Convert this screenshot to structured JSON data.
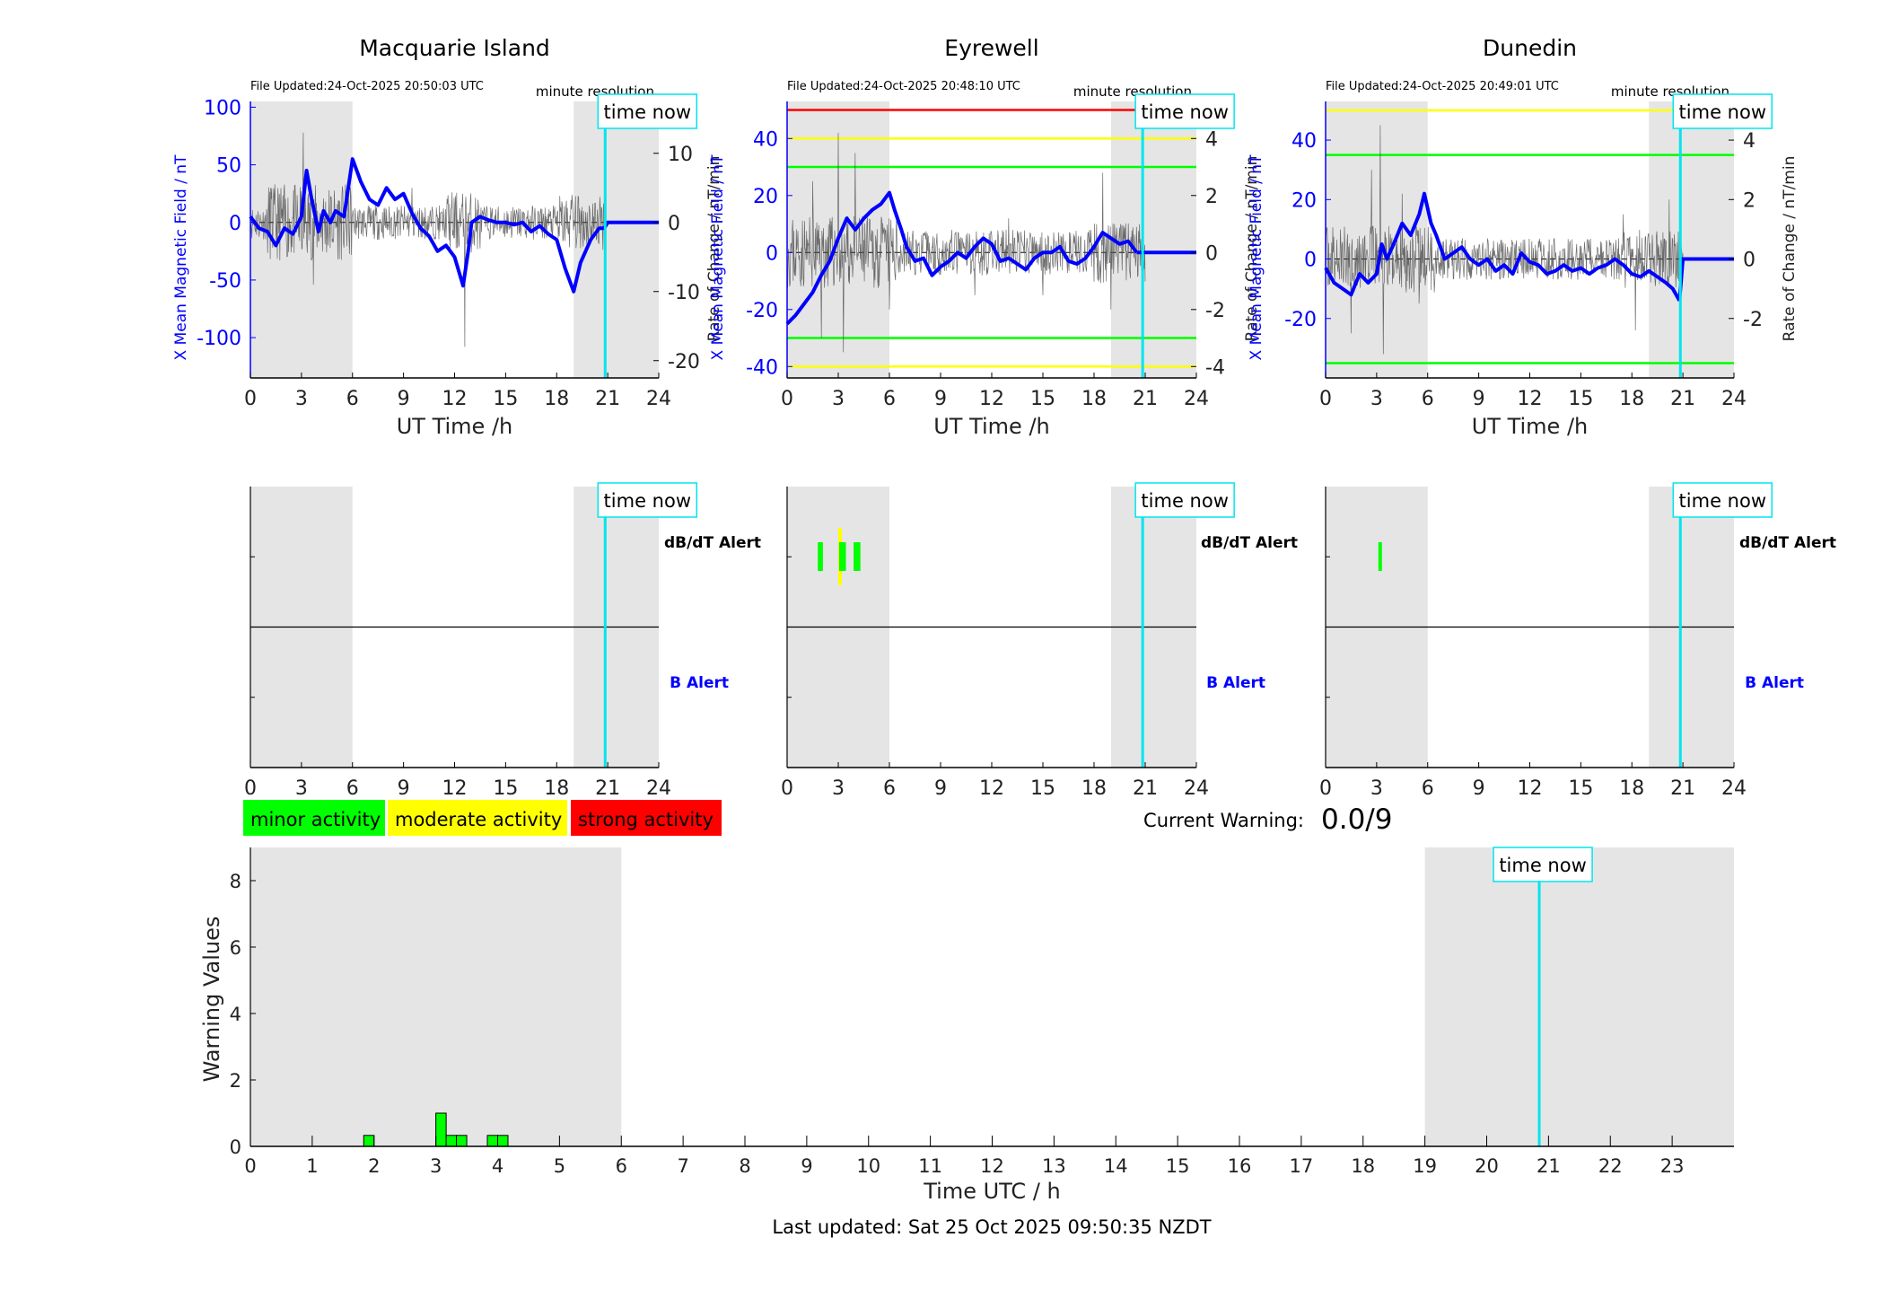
{
  "figure": {
    "footer": "Last updated: Sat 25 Oct 2025 09:50:35 NZDT",
    "time_now_label": "time now",
    "minute_resolution_label": "minute resolution",
    "now_hour": 20.85,
    "night_shading": [
      [
        0,
        6
      ],
      [
        19,
        24
      ]
    ],
    "colors": {
      "minor": "#00ff00",
      "moderate": "#ffff00",
      "strong": "#ff0000",
      "field": "#0000ff",
      "now_line": "#00e5ee",
      "shade": "#e5e5e5"
    }
  },
  "legend": {
    "items": [
      {
        "label": "minor activity",
        "color": "#00ff00"
      },
      {
        "label": "moderate activity",
        "color": "#ffff00"
      },
      {
        "label": "strong activity",
        "color": "#ff0000"
      }
    ]
  },
  "current_warning": {
    "label": "Current Warning:",
    "value": "0.0/9"
  },
  "chart_data": [
    {
      "type": "line",
      "title": "Macquarie Island",
      "file_updated": "File Updated:24-Oct-2025 20:50:03 UTC",
      "xlabel": "UT Time /h",
      "ylabel": "X Mean Magnetic Field / nT",
      "ylabel_right": "Rate of Change / nT/min",
      "xlim": [
        0,
        24
      ],
      "xticks": [
        0,
        3,
        6,
        9,
        12,
        15,
        18,
        21,
        24
      ],
      "ylim": [
        -135,
        105
      ],
      "yticks": [
        -100,
        -50,
        0,
        50,
        100
      ],
      "y2lim": [
        -22.5,
        17.5
      ],
      "y2ticks": [
        -20,
        -10,
        0,
        10
      ],
      "thresholds": [],
      "series": [
        {
          "values": [
            [
              0,
              5
            ],
            [
              0.5,
              -5
            ],
            [
              1,
              -8
            ],
            [
              1.5,
              -20
            ],
            [
              2,
              -5
            ],
            [
              2.5,
              -10
            ],
            [
              3,
              5
            ],
            [
              3.3,
              45
            ],
            [
              3.6,
              20
            ],
            [
              4,
              -8
            ],
            [
              4.3,
              10
            ],
            [
              4.7,
              0
            ],
            [
              5,
              10
            ],
            [
              5.5,
              5
            ],
            [
              6,
              55
            ],
            [
              6.5,
              35
            ],
            [
              7,
              20
            ],
            [
              7.5,
              15
            ],
            [
              8,
              30
            ],
            [
              8.5,
              20
            ],
            [
              9,
              25
            ],
            [
              9.5,
              8
            ],
            [
              10,
              -5
            ],
            [
              10.5,
              -12
            ],
            [
              11,
              -25
            ],
            [
              11.5,
              -20
            ],
            [
              12,
              -30
            ],
            [
              12.5,
              -55
            ],
            [
              12.8,
              -25
            ],
            [
              13,
              0
            ],
            [
              13.5,
              5
            ],
            [
              14,
              2
            ],
            [
              14.5,
              0
            ],
            [
              15,
              0
            ],
            [
              15.5,
              -2
            ],
            [
              16,
              0
            ],
            [
              16.5,
              -8
            ],
            [
              17,
              -3
            ],
            [
              17.5,
              -10
            ],
            [
              18,
              -15
            ],
            [
              18.5,
              -40
            ],
            [
              19,
              -60
            ],
            [
              19.4,
              -35
            ],
            [
              20,
              -15
            ],
            [
              20.5,
              -5
            ],
            [
              20.8,
              -5
            ],
            [
              21,
              0
            ],
            [
              24,
              0
            ]
          ]
        }
      ],
      "rate": {
        "start": 0,
        "end": 20.9,
        "amplitude": 2.5,
        "spikes": [
          [
            3.1,
            13
          ],
          [
            3.7,
            -9
          ],
          [
            12.6,
            -18
          ],
          [
            1.2,
            5
          ],
          [
            9.5,
            5
          ],
          [
            18.9,
            4
          ]
        ],
        "active": [
          [
            1,
            6,
            2.2
          ],
          [
            11.5,
            13.5,
            1.8
          ],
          [
            18,
            20.9,
            1.6
          ]
        ],
        "seed": 11
      },
      "alerts": {
        "dbdt": [],
        "b": []
      }
    },
    {
      "type": "line",
      "title": "Eyrewell",
      "file_updated": "File Updated:24-Oct-2025 20:48:10 UTC",
      "xlabel": "UT Time /h",
      "ylabel": "X Mean Magnetic Field / nT",
      "ylabel_right": "Rate of Change / nT/min",
      "xlim": [
        0,
        24
      ],
      "xticks": [
        0,
        3,
        6,
        9,
        12,
        15,
        18,
        21,
        24
      ],
      "ylim": [
        -44,
        53
      ],
      "yticks": [
        -40,
        -20,
        0,
        20,
        40
      ],
      "y2lim": [
        -4.4,
        5.3
      ],
      "y2ticks": [
        -4,
        -2,
        0,
        2,
        4
      ],
      "thresholds": [
        {
          "value": 50,
          "color": "#ff0000"
        },
        {
          "value": 40,
          "color": "#ffff00"
        },
        {
          "value": 30,
          "color": "#00ff00"
        },
        {
          "value": -30,
          "color": "#00ff00"
        },
        {
          "value": -40,
          "color": "#ffff00"
        }
      ],
      "series": [
        {
          "values": [
            [
              0,
              -25
            ],
            [
              0.5,
              -22
            ],
            [
              1,
              -18
            ],
            [
              1.5,
              -14
            ],
            [
              2,
              -8
            ],
            [
              2.5,
              -3
            ],
            [
              3,
              5
            ],
            [
              3.5,
              12
            ],
            [
              4,
              8
            ],
            [
              4.5,
              12
            ],
            [
              5,
              15
            ],
            [
              5.5,
              17
            ],
            [
              6,
              21
            ],
            [
              6.3,
              15
            ],
            [
              6.7,
              8
            ],
            [
              7,
              2
            ],
            [
              7.5,
              -3
            ],
            [
              8,
              -2
            ],
            [
              8.5,
              -8
            ],
            [
              9,
              -5
            ],
            [
              9.5,
              -3
            ],
            [
              10,
              0
            ],
            [
              10.5,
              -2
            ],
            [
              11,
              2
            ],
            [
              11.5,
              5
            ],
            [
              12,
              3
            ],
            [
              12.5,
              -3
            ],
            [
              13,
              -2
            ],
            [
              13.5,
              -4
            ],
            [
              14,
              -6
            ],
            [
              14.5,
              -2
            ],
            [
              15,
              0
            ],
            [
              15.5,
              0
            ],
            [
              16,
              2
            ],
            [
              16.5,
              -3
            ],
            [
              17,
              -4
            ],
            [
              17.5,
              -2
            ],
            [
              18,
              2
            ],
            [
              18.5,
              7
            ],
            [
              19,
              5
            ],
            [
              19.5,
              3
            ],
            [
              20,
              4
            ],
            [
              20.5,
              0
            ],
            [
              21,
              0
            ],
            [
              24,
              0
            ]
          ]
        }
      ],
      "rate": {
        "start": 0,
        "end": 21,
        "amplitude": 0.8,
        "spikes": [
          [
            3.0,
            4.2
          ],
          [
            3.3,
            -3.5
          ],
          [
            2.0,
            -3
          ],
          [
            4.0,
            3.5
          ],
          [
            6.0,
            -2
          ],
          [
            1.5,
            2.5
          ],
          [
            18.5,
            2.8
          ],
          [
            19.0,
            -2
          ],
          [
            11.0,
            -1.5
          ],
          [
            13.0,
            1.2
          ],
          [
            15.0,
            -1.5
          ]
        ],
        "active": [
          [
            0,
            6.5,
            1.6
          ],
          [
            18,
            21,
            1.4
          ]
        ],
        "seed": 23
      },
      "alerts": {
        "dbdt": [
          {
            "x0": 1.8,
            "x1": 2.1,
            "color": "#00ff00"
          },
          {
            "x0": 3.0,
            "x1": 3.15,
            "color": "#ffff00",
            "tall": true
          },
          {
            "x0": 3.15,
            "x1": 3.45,
            "color": "#00ff00"
          },
          {
            "x0": 3.05,
            "x1": 3.15,
            "color": "#00ff00"
          },
          {
            "x0": 3.9,
            "x1": 4.3,
            "color": "#00ff00"
          }
        ],
        "b": []
      }
    },
    {
      "type": "line",
      "title": "Dunedin",
      "file_updated": "File Updated:24-Oct-2025 20:49:01 UTC",
      "xlabel": "UT Time /h",
      "ylabel": "X Mean Magnetic Field / nT",
      "ylabel_right": "Rate of Change / nT/min",
      "xlim": [
        0,
        24
      ],
      "xticks": [
        0,
        3,
        6,
        9,
        12,
        15,
        18,
        21,
        24
      ],
      "ylim": [
        -40,
        53
      ],
      "yticks": [
        -20,
        0,
        20,
        40
      ],
      "y2lim": [
        -4,
        5.3
      ],
      "y2ticks": [
        -2,
        0,
        2,
        4
      ],
      "thresholds": [
        {
          "value": 50,
          "color": "#ffff00"
        },
        {
          "value": 35,
          "color": "#00ff00"
        },
        {
          "value": -35,
          "color": "#00ff00"
        }
      ],
      "series": [
        {
          "values": [
            [
              0,
              -3
            ],
            [
              0.5,
              -8
            ],
            [
              1,
              -10
            ],
            [
              1.5,
              -12
            ],
            [
              2,
              -5
            ],
            [
              2.5,
              -8
            ],
            [
              3,
              -5
            ],
            [
              3.3,
              5
            ],
            [
              3.6,
              0
            ],
            [
              4,
              5
            ],
            [
              4.5,
              12
            ],
            [
              5,
              8
            ],
            [
              5.5,
              15
            ],
            [
              5.8,
              22
            ],
            [
              6.2,
              12
            ],
            [
              6.5,
              8
            ],
            [
              7,
              0
            ],
            [
              7.5,
              2
            ],
            [
              8,
              4
            ],
            [
              8.5,
              0
            ],
            [
              9,
              -2
            ],
            [
              9.5,
              0
            ],
            [
              10,
              -4
            ],
            [
              10.5,
              -2
            ],
            [
              11,
              -5
            ],
            [
              11.5,
              2
            ],
            [
              12,
              -1
            ],
            [
              12.5,
              -2
            ],
            [
              13,
              -5
            ],
            [
              13.5,
              -4
            ],
            [
              14,
              -2
            ],
            [
              14.5,
              -4
            ],
            [
              15,
              -3
            ],
            [
              15.5,
              -5
            ],
            [
              16,
              -3
            ],
            [
              16.5,
              -2
            ],
            [
              17,
              0
            ],
            [
              17.5,
              -2
            ],
            [
              18,
              -5
            ],
            [
              18.5,
              -6
            ],
            [
              19,
              -4
            ],
            [
              19.5,
              -6
            ],
            [
              20,
              -8
            ],
            [
              20.4,
              -10
            ],
            [
              20.8,
              -14
            ],
            [
              21,
              0
            ],
            [
              24,
              0
            ]
          ]
        }
      ],
      "rate": {
        "start": 0,
        "end": 21,
        "amplitude": 0.7,
        "spikes": [
          [
            3.2,
            4.5
          ],
          [
            3.4,
            -3.2
          ],
          [
            2.7,
            3
          ],
          [
            1.5,
            -2.5
          ],
          [
            4.5,
            2.2
          ],
          [
            18.2,
            -2.4
          ],
          [
            20.2,
            2
          ],
          [
            5.5,
            -1.5
          ],
          [
            17.5,
            1.5
          ]
        ],
        "active": [
          [
            0,
            6.5,
            1.6
          ],
          [
            17.5,
            21,
            1.4
          ]
        ],
        "seed": 37
      },
      "alerts": {
        "dbdt": [
          {
            "x0": 3.1,
            "x1": 3.3,
            "color": "#00ff00"
          }
        ],
        "b": []
      }
    },
    {
      "type": "bar",
      "xlabel": "Time UTC / h",
      "ylabel": "Warning Values",
      "xlim": [
        0,
        24
      ],
      "xticks": [
        0,
        1,
        2,
        3,
        4,
        5,
        6,
        7,
        8,
        9,
        10,
        11,
        12,
        13,
        14,
        15,
        16,
        17,
        18,
        19,
        20,
        21,
        22,
        23
      ],
      "ylim": [
        0,
        9
      ],
      "yticks": [
        0,
        2,
        4,
        6,
        8
      ],
      "bars": [
        {
          "x0": 1.833,
          "x1": 2.0,
          "value": 0.33
        },
        {
          "x0": 3.0,
          "x1": 3.167,
          "value": 1.0
        },
        {
          "x0": 3.167,
          "x1": 3.333,
          "value": 0.33
        },
        {
          "x0": 3.333,
          "x1": 3.5,
          "value": 0.33
        },
        {
          "x0": 3.833,
          "x1": 4.0,
          "value": 0.33
        },
        {
          "x0": 4.0,
          "x1": 4.167,
          "value": 0.33
        }
      ]
    }
  ],
  "alert_labels": {
    "dbdt": "dB/dT Alert",
    "b": "B Alert"
  }
}
